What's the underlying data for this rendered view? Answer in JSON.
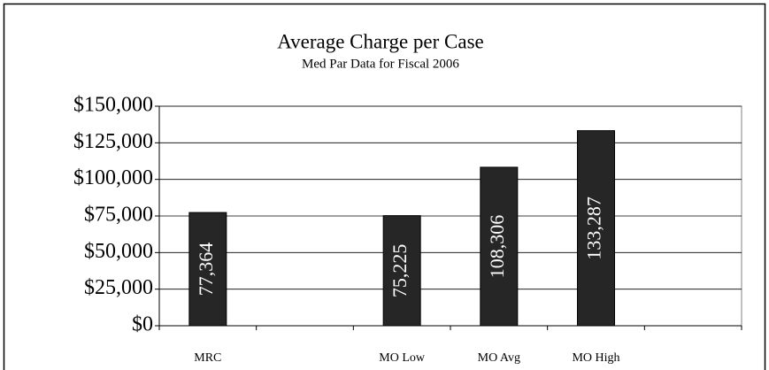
{
  "chart_data": {
    "type": "bar",
    "title": "Average Charge per Case",
    "subtitle": "Med Par Data for Fiscal 2006",
    "categories": [
      "MRC",
      null,
      "MO Low",
      "MO Avg",
      "MO High",
      null
    ],
    "values": [
      77364,
      null,
      75225,
      108306,
      133287,
      null
    ],
    "value_labels": [
      "77,364",
      null,
      "75,225",
      "108,306",
      "133,287",
      null
    ],
    "color": "#262626",
    "ylim": [
      0,
      150000
    ],
    "yticks": [
      {
        "value": 0,
        "label": "$0"
      },
      {
        "value": 25000,
        "label": "$25,000"
      },
      {
        "value": 50000,
        "label": "$50,000"
      },
      {
        "value": 75000,
        "label": "$75,000"
      },
      {
        "value": 100000,
        "label": "$100,000"
      },
      {
        "value": 125000,
        "label": "$125,000"
      },
      {
        "value": 150000,
        "label": "$150,000"
      }
    ],
    "grid": true
  }
}
